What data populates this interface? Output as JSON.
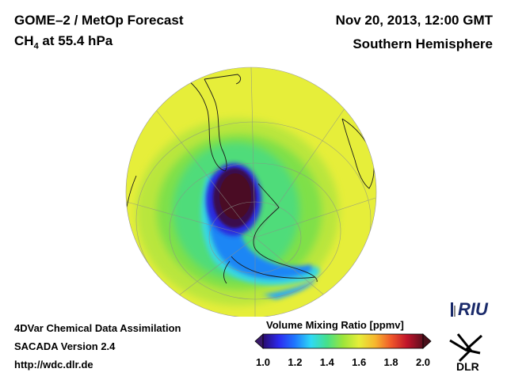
{
  "header": {
    "instrument": "GOME–2 / MetOp Forecast",
    "species_main": "CH",
    "species_sub": "4",
    "species_rest": " at 55.4 hPa",
    "date": "Nov 20, 2013, 12:00 GMT",
    "hemisphere": "Southern Hemisphere"
  },
  "footer": {
    "line1": "4DVar Chemical Data Assimilation",
    "line2": "SACADA Version 2.4",
    "line3": "http://wdc.dlr.de"
  },
  "colorbar": {
    "title": "Volume Mixing Ratio [ppmv]",
    "min": 1.0,
    "max": 2.0,
    "ticks": [
      "1.0",
      "1.2",
      "1.4",
      "1.6",
      "1.8",
      "2.0"
    ],
    "colors": [
      "#2a0a6e",
      "#2b2bf0",
      "#1e78ff",
      "#2fd9f5",
      "#45e08a",
      "#9ce53a",
      "#e6ee3a",
      "#f7b72e",
      "#f0582a",
      "#c0142a",
      "#5e0f1e"
    ]
  },
  "logos": {
    "riu": "RIU",
    "dlr": "DLR"
  },
  "map": {
    "projection": "orthographic",
    "hemisphere": "south",
    "background_color": "#e6ee3a"
  }
}
